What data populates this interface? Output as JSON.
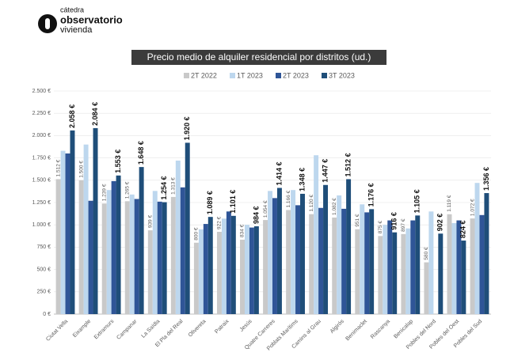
{
  "logo": {
    "line1": "cátedra",
    "line2": "observatorio",
    "line3": "vivienda"
  },
  "chart_data": {
    "type": "bar",
    "title": "Precio medio de alquiler residencial por distritos (ud.)",
    "categories": [
      "Ciutat Vella",
      "Eixample",
      "Extramurs",
      "Campanar",
      "La Saïdia",
      "El Pla del Real",
      "Olivereta",
      "Patraix",
      "Jesús",
      "Quatre Carreres",
      "Poblats Marítims",
      "Camins al Grau",
      "Algirós",
      "Benimaclet",
      "Rascanya",
      "Benicalap",
      "Pobles del Nord",
      "Pobles del Oest",
      "Pobles del Sud"
    ],
    "series": [
      {
        "name": "2T 2022",
        "color": "#c9c9c9",
        "values": [
          1512,
          1500,
          1239,
          1265,
          939,
          1313,
          800,
          922,
          834,
          1054,
          1166,
          1120,
          1082,
          951,
          875,
          897,
          580,
          1119,
          1072
        ],
        "value_labels": [
          "1.512 €",
          "1.500 €",
          "1.239 €",
          "1.265 €",
          "939 €",
          "1.313 €",
          "800 €",
          "922 €",
          "834 €",
          "1.054 €",
          "1.166 €",
          "1.120 €",
          "1.082 €",
          "951 €",
          "875 €",
          "897 €",
          "580 €",
          "1.119 €",
          "1.072 €"
        ]
      },
      {
        "name": "1T 2023",
        "color": "#bdd7ee",
        "values": [
          1830,
          1900,
          1390,
          1340,
          1380,
          1720,
          950,
          1070,
          1000,
          1380,
          1390,
          1780,
          1330,
          1230,
          1000,
          960,
          1150,
          1020,
          1470
        ]
      },
      {
        "name": "2T 2023",
        "color": "#2f5597",
        "values": [
          1800,
          1270,
          1490,
          1290,
          1260,
          1420,
          1010,
          1150,
          970,
          1300,
          1220,
          1190,
          1180,
          1140,
          1050,
          1050,
          null,
          1050,
          1110
        ]
      },
      {
        "name": "3T 2023",
        "color": "#1f4e79",
        "values": [
          2058,
          2084,
          1553,
          1648,
          1254,
          1920,
          1089,
          1101,
          984,
          1414,
          1348,
          1447,
          1512,
          1176,
          916,
          1105,
          902,
          824,
          1356
        ],
        "value_labels": [
          "2.058 €",
          "2.084 €",
          "1.553 €",
          "1.648 €",
          "1.254 €",
          "1.920 €",
          "1.089 €",
          "1.101 €",
          "984 €",
          "1.414 €",
          "1.348 €",
          "1.447 €",
          "1.512 €",
          "1.176 €",
          "916 €",
          "1.105 €",
          "902 €",
          "824 €",
          "1.356 €"
        ]
      }
    ],
    "ylim": [
      0,
      2500
    ],
    "yticks": [
      {
        "value": 0,
        "label": "0 €"
      },
      {
        "value": 250,
        "label": "250 €"
      },
      {
        "value": 500,
        "label": "500 €"
      },
      {
        "value": 750,
        "label": "750 €"
      },
      {
        "value": 1000,
        "label": "1.000 €"
      },
      {
        "value": 1250,
        "label": "1.250 €"
      },
      {
        "value": 1500,
        "label": "1.500 €"
      },
      {
        "value": 1750,
        "label": "1.750 €"
      },
      {
        "value": 2000,
        "label": "2.000 €"
      },
      {
        "value": 2250,
        "label": "2.250 €"
      },
      {
        "value": 2500,
        "label": "2.500 €"
      }
    ],
    "grid": true
  }
}
